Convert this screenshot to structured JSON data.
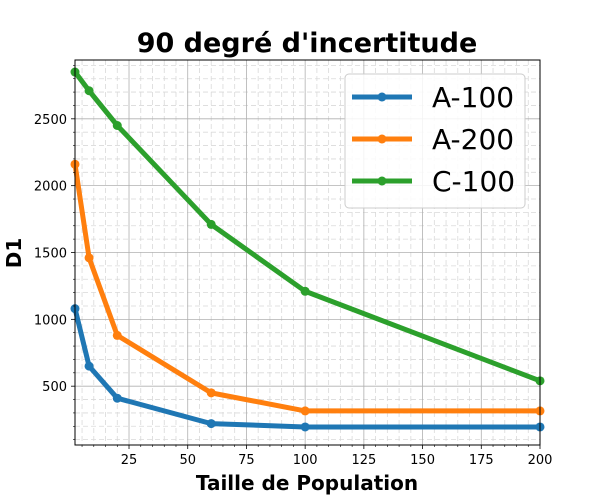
{
  "chart_data": {
    "type": "line",
    "title": "90 degré d'incertitude",
    "xlabel": "Taille de Population",
    "ylabel": "D1",
    "xlim": [
      2,
      200
    ],
    "ylim": [
      60,
      2940
    ],
    "xticks": [
      25,
      50,
      75,
      100,
      125,
      150,
      175,
      200
    ],
    "yticks": [
      500,
      1000,
      1500,
      2000,
      2500
    ],
    "grid": true,
    "minor_grid": true,
    "legend_position": "top-right",
    "x": [
      2,
      8,
      20,
      60,
      100,
      200
    ],
    "series": [
      {
        "name": "A-100",
        "color": "#1f77b4",
        "values": [
          1080,
          650,
          410,
          220,
          195,
          195
        ]
      },
      {
        "name": "A-200",
        "color": "#ff7f0e",
        "values": [
          2160,
          1460,
          880,
          450,
          315,
          315
        ]
      },
      {
        "name": "C-100",
        "color": "#2ca02c",
        "values": [
          2850,
          2710,
          2450,
          1710,
          1210,
          540
        ]
      }
    ]
  }
}
